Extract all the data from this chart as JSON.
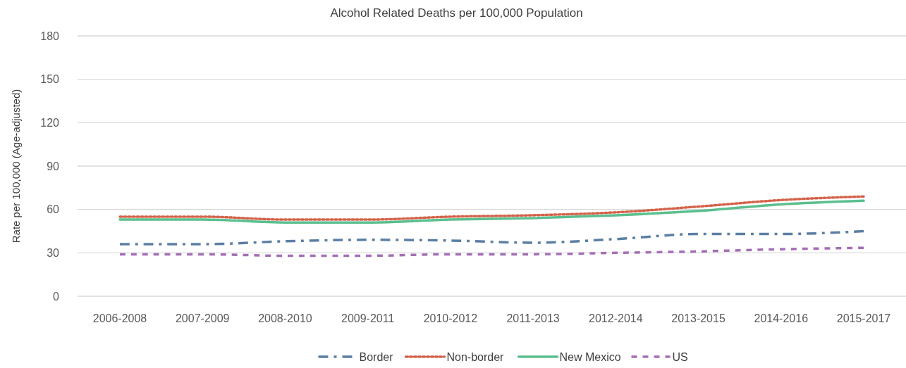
{
  "chart_data": {
    "type": "line",
    "title": "Alcohol Related Deaths per 100,000 Population",
    "ylabel": "Rate per 100,000 (Age-adjusted)",
    "categories": [
      "2006-2008",
      "2007-2009",
      "2008-2010",
      "2009-2011",
      "2010-2012",
      "2011-2013",
      "2012-2014",
      "2013-2015",
      "2014-2016",
      "2015-2017"
    ],
    "series": [
      {
        "name": "Border",
        "color": "#5b7fa3",
        "line_style": "dashdot",
        "values": [
          36,
          36,
          38,
          39,
          38.5,
          37,
          39.5,
          43,
          43,
          45
        ]
      },
      {
        "name": "Non-border",
        "color": "#d4634a",
        "line_style": "dotted",
        "values": [
          55,
          55,
          53,
          53,
          55,
          56,
          58,
          62,
          66.5,
          69
        ]
      },
      {
        "name": "New Mexico",
        "color": "#5bbf8e",
        "line_style": "solid",
        "values": [
          53,
          53,
          51,
          51,
          53,
          54,
          56,
          59,
          63.5,
          66
        ]
      },
      {
        "name": "US",
        "color": "#a46fb5",
        "line_style": "dashed",
        "values": [
          29,
          29,
          28,
          28,
          29,
          29,
          30,
          31,
          32.5,
          33.5
        ]
      }
    ],
    "ylim": [
      0,
      180
    ],
    "yticks": [
      0,
      30,
      60,
      90,
      120,
      150,
      180
    ],
    "grid": "y",
    "legend": "bottom",
    "marker": "none"
  }
}
